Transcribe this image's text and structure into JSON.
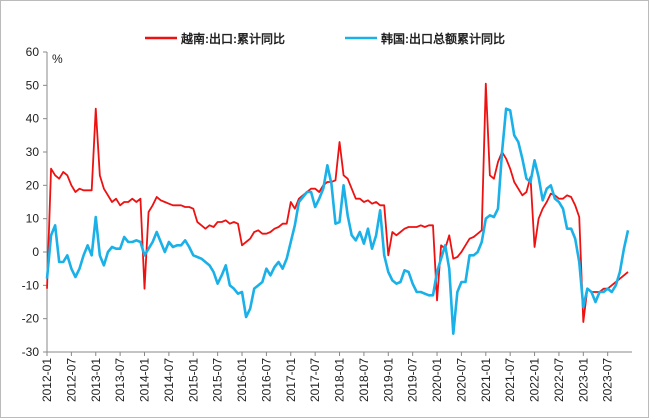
{
  "chart_data": {
    "type": "line",
    "y_unit": "%",
    "categories": [
      "2012-01",
      null,
      null,
      null,
      null,
      null,
      "2012-07",
      null,
      null,
      null,
      null,
      null,
      "2013-01",
      null,
      null,
      null,
      null,
      null,
      "2013-07",
      null,
      null,
      null,
      null,
      null,
      "2014-01",
      null,
      null,
      null,
      null,
      null,
      "2014-07",
      null,
      null,
      null,
      null,
      null,
      "2015-01",
      null,
      null,
      null,
      null,
      null,
      "2015-07",
      null,
      null,
      null,
      null,
      null,
      "2016-01",
      null,
      null,
      null,
      null,
      null,
      "2016-07",
      null,
      null,
      null,
      null,
      null,
      "2017-01",
      null,
      null,
      null,
      null,
      null,
      "2017-07",
      null,
      null,
      null,
      null,
      null,
      "2018-01",
      null,
      null,
      null,
      null,
      null,
      "2018-07",
      null,
      null,
      null,
      null,
      null,
      "2019-01",
      null,
      null,
      null,
      null,
      null,
      "2019-07",
      null,
      null,
      null,
      null,
      null,
      "2020-01",
      null,
      null,
      null,
      null,
      null,
      "2020-07",
      null,
      null,
      null,
      null,
      null,
      "2021-01",
      null,
      null,
      null,
      null,
      null,
      "2021-07",
      null,
      null,
      null,
      null,
      null,
      "2022-01",
      null,
      null,
      null,
      null,
      null,
      "2022-07",
      null,
      null,
      null,
      null,
      null,
      "2023-01",
      null,
      null,
      null,
      null,
      null,
      "2023-07",
      null,
      null,
      null,
      null,
      null
    ],
    "series": [
      {
        "name": "越南:出口:累计同比",
        "color": "#ee1111",
        "values": [
          -11,
          25,
          23,
          22,
          24,
          23,
          20,
          18,
          19,
          18.5,
          18.5,
          18.5,
          43,
          23,
          19,
          17,
          15,
          16,
          14,
          15,
          15,
          16,
          15,
          16,
          -11,
          12,
          14,
          16.5,
          15.5,
          15,
          14.5,
          14,
          14,
          14,
          13.5,
          13.5,
          13,
          9,
          8,
          7,
          8,
          7.5,
          9,
          9,
          9.5,
          8.5,
          9,
          8.5,
          2,
          3,
          4,
          6,
          6.5,
          5.5,
          5.5,
          6,
          7,
          7.5,
          8.5,
          8.5,
          15,
          13,
          16,
          17,
          18,
          19,
          19,
          18,
          20,
          21,
          21,
          21.5,
          33,
          23,
          22,
          19,
          16,
          16,
          15,
          15.5,
          14.5,
          15,
          14,
          14,
          -1,
          6,
          5,
          6,
          7,
          7.5,
          7.5,
          7.5,
          8,
          7.5,
          8,
          8,
          -14.5,
          2,
          1,
          5,
          -2,
          -1.5,
          0,
          2,
          4,
          4.5,
          5.5,
          6.5,
          50.5,
          23,
          22,
          27,
          30,
          28,
          25,
          21,
          19,
          17,
          18,
          22.5,
          1.5,
          10,
          13,
          15,
          17.5,
          17,
          16,
          16,
          17,
          16.5,
          14,
          10.5,
          -21,
          -11,
          -12,
          -12,
          -12,
          -11,
          -11,
          -10,
          -9,
          -8,
          -7,
          -6
        ]
      },
      {
        "name": "韩国:出口总额累计同比",
        "color": "#1ab0e8",
        "values": [
          -8,
          5,
          8,
          -3,
          -3,
          -1,
          -5,
          -7.5,
          -5,
          -1,
          2,
          -1,
          10.5,
          -1,
          -4,
          0,
          1.5,
          1,
          1,
          4.5,
          3,
          3,
          3.5,
          3,
          -1,
          1,
          3,
          6,
          3,
          0,
          3,
          1.5,
          2,
          2,
          3.5,
          1.5,
          -1,
          -1.5,
          -2,
          -3,
          -4,
          -6,
          -9.5,
          -7,
          -4,
          -10,
          -11,
          -12.5,
          -12,
          -19.5,
          -17,
          -11,
          -10,
          -9,
          -5,
          -7,
          -4.5,
          -3,
          -5,
          -2,
          3,
          8,
          15,
          16.5,
          18,
          18,
          13.5,
          16,
          19,
          26,
          20.5,
          8.5,
          9,
          20,
          11,
          5,
          3.5,
          6,
          2.5,
          7,
          1,
          5,
          12.5,
          -1,
          -6,
          -8.5,
          -9.5,
          -9,
          -5.5,
          -6,
          -9.5,
          -12,
          -12,
          -12.5,
          -13,
          -13,
          -6,
          -2,
          2,
          -5,
          -24.5,
          -12,
          -9,
          -9,
          -1,
          -1,
          0,
          3,
          10,
          11,
          10.5,
          13,
          30,
          43,
          42.5,
          35,
          33,
          28,
          22,
          21,
          27.5,
          22.5,
          15.5,
          19,
          20,
          16,
          15,
          13,
          7,
          7,
          4,
          -3,
          -16.5,
          -11,
          -12,
          -15,
          -12,
          -12,
          -11,
          -12,
          -10,
          -6,
          1,
          6.5
        ]
      }
    ],
    "ylim": [
      -30,
      60
    ],
    "yticks": [
      -30,
      -20,
      -10,
      0,
      10,
      20,
      30,
      40,
      50,
      60
    ],
    "grid": false
  }
}
